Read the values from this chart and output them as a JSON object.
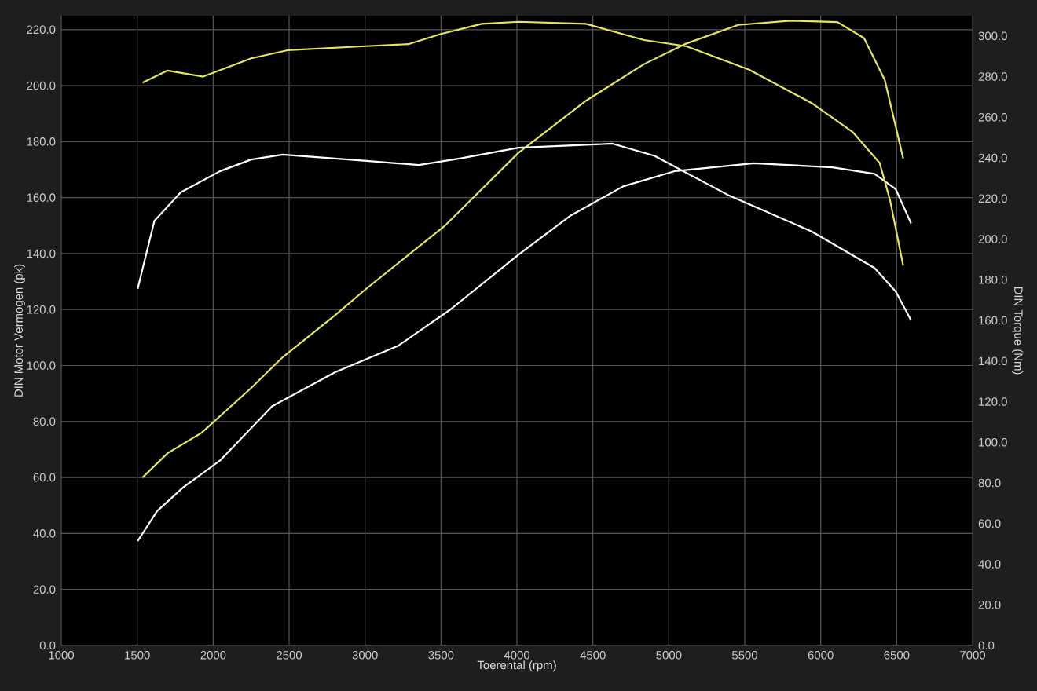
{
  "chart_data": {
    "type": "line",
    "xlabel": "Toerental (rpm)",
    "ylabel": "DIN Motor Vermogen (pk)",
    "y2label": "DIN Torque (Nm)",
    "xlim": [
      1000,
      7000
    ],
    "xticks": [
      1000,
      1500,
      2000,
      2500,
      3000,
      3500,
      4000,
      4500,
      5000,
      5500,
      6000,
      6500,
      7000
    ],
    "ylim": [
      0,
      225
    ],
    "yticks": [
      {
        "value": 0,
        "label": "0.0"
      },
      {
        "value": 20,
        "label": "20.0"
      },
      {
        "value": 40,
        "label": "40.0"
      },
      {
        "value": 60,
        "label": "60.0"
      },
      {
        "value": 80,
        "label": "80.0"
      },
      {
        "value": 100,
        "label": "100.0"
      },
      {
        "value": 120,
        "label": "120.0"
      },
      {
        "value": 140,
        "label": "140.0"
      },
      {
        "value": 160,
        "label": "160.0"
      },
      {
        "value": 180,
        "label": "180.0"
      },
      {
        "value": 200,
        "label": "200.0"
      },
      {
        "value": 220,
        "label": "220.0"
      }
    ],
    "y2lim": [
      0,
      310
    ],
    "y2ticks": [
      {
        "value": 0,
        "label": "0.0"
      },
      {
        "value": 20,
        "label": "20.0"
      },
      {
        "value": 40,
        "label": "40.0"
      },
      {
        "value": 60,
        "label": "60.0"
      },
      {
        "value": 80,
        "label": "80.0"
      },
      {
        "value": 100,
        "label": "100.0"
      },
      {
        "value": 120,
        "label": "120.0"
      },
      {
        "value": 140,
        "label": "140.0"
      },
      {
        "value": 160,
        "label": "160.0"
      },
      {
        "value": 180,
        "label": "180.0"
      },
      {
        "value": 200,
        "label": "200.0"
      },
      {
        "value": 220,
        "label": "220.0"
      },
      {
        "value": 240,
        "label": "240.0"
      },
      {
        "value": 260,
        "label": "260.0"
      },
      {
        "value": 280,
        "label": "280.0"
      },
      {
        "value": 300,
        "label": "300.0"
      }
    ],
    "grid": true,
    "series": [
      {
        "color": "#e6e65a",
        "x": [
          1535,
          1700,
          1924,
          2079,
          2251,
          2458,
          2803,
          3009,
          3526,
          4010,
          4457,
          4837,
          5113,
          5457,
          5801,
          6110,
          6285,
          6422,
          6543
        ],
        "values": [
          60,
          68.7,
          76,
          83.6,
          92,
          103,
          118,
          127.5,
          150,
          176,
          194.7,
          207.7,
          215,
          221.7,
          223.2,
          222.7,
          217,
          202,
          174
        ]
      },
      {
        "color": "#ffffff",
        "x": [
          1503,
          1631,
          1803,
          2044,
          2389,
          2803,
          3216,
          3561,
          4010,
          4354,
          4699,
          5043,
          5560,
          6077,
          6354,
          6494,
          6595
        ],
        "values": [
          37.3,
          48,
          56.5,
          66,
          85.5,
          97.6,
          107,
          120,
          139.6,
          153.6,
          164,
          169.5,
          172.3,
          170.8,
          168.5,
          163,
          150.8
        ]
      },
      {
        "color": "#e6e65a",
        "axis": "y2",
        "x": [
          1535,
          1700,
          1934,
          2251,
          2490,
          3006,
          3285,
          3500,
          3768,
          4010,
          4454,
          4837,
          5113,
          5526,
          5940,
          6212,
          6388,
          6457,
          6543
        ],
        "values": [
          277,
          283,
          280,
          289,
          293,
          295,
          296,
          301,
          306,
          307,
          306,
          298,
          295,
          283.5,
          267,
          252.6,
          237.5,
          219,
          187
        ]
      },
      {
        "color": "#ffffff",
        "axis": "y2",
        "x": [
          1503,
          1613,
          1786,
          2044,
          2251,
          2458,
          3009,
          3354,
          3630,
          4010,
          4630,
          4906,
          5388,
          5940,
          6354,
          6494,
          6595
        ],
        "values": [
          175.6,
          209,
          223,
          233.4,
          239.2,
          241.6,
          238.5,
          236.5,
          239.8,
          245,
          247,
          241,
          221.8,
          203.8,
          185.8,
          174.2,
          160
        ]
      }
    ]
  }
}
